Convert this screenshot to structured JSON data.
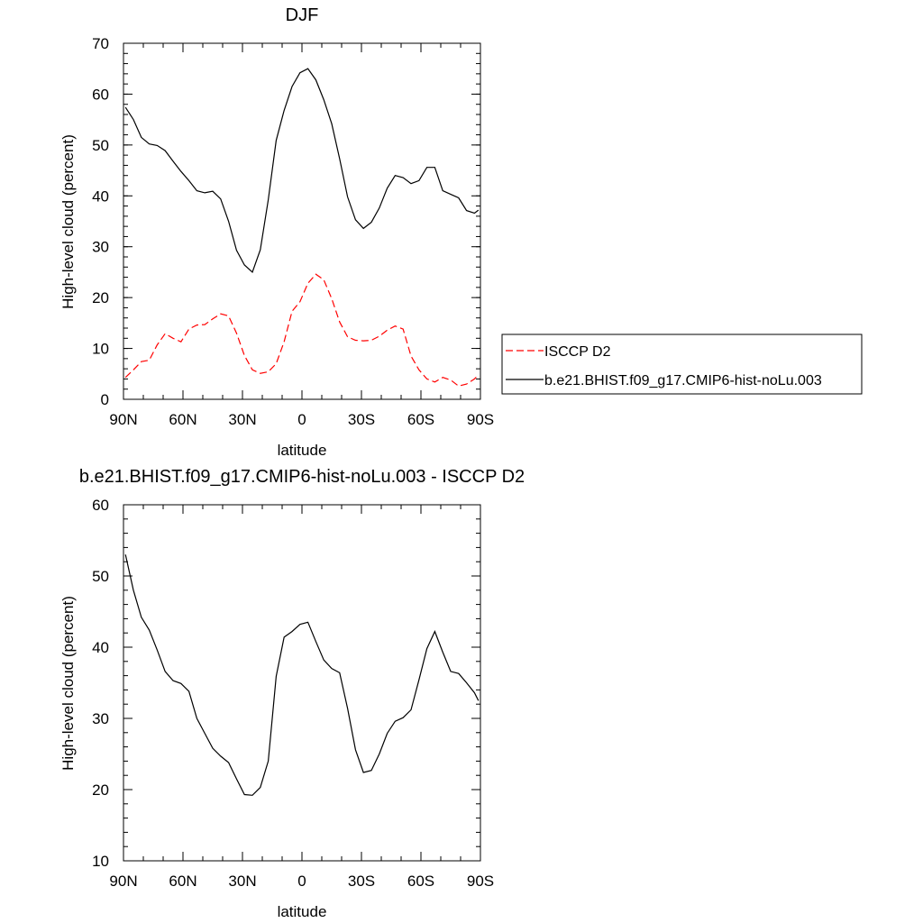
{
  "colors": {
    "model": "#000000",
    "obs": "#ff0000",
    "axis": "#000000"
  },
  "legend": {
    "entries": [
      {
        "label": "ISCCP D2",
        "style": "dashed",
        "color": "#ff0000"
      },
      {
        "label": "b.e21.BHIST.f09_g17.CMIP6-hist-noLu.003",
        "style": "solid",
        "color": "#000000"
      }
    ],
    "placement": "right-middle"
  },
  "chart_data": [
    {
      "type": "line",
      "title": "DJF",
      "xlabel": "latitude",
      "ylabel": "High-level cloud (percent)",
      "xlim": [
        90,
        -90
      ],
      "ylim": [
        0,
        70
      ],
      "xticks": [
        90,
        60,
        30,
        0,
        -30,
        -60,
        -90
      ],
      "xtick_labels": [
        "90N",
        "60N",
        "30N",
        "0",
        "30S",
        "60S",
        "90S"
      ],
      "yticks": [
        0,
        10,
        20,
        30,
        40,
        50,
        60,
        70
      ],
      "ytick_labels": [
        "0",
        "10",
        "20",
        "30",
        "40",
        "50",
        "60",
        "70"
      ],
      "grid": false,
      "series": [
        {
          "name": "ISCCP D2",
          "style": "dashed",
          "x": [
            89,
            85,
            81,
            77,
            73,
            69,
            65,
            61,
            57,
            53,
            49,
            45,
            41,
            37,
            33,
            29,
            25,
            21,
            17,
            13,
            9,
            5,
            1,
            -3,
            -7,
            -11,
            -15,
            -19,
            -23,
            -27,
            -31,
            -35,
            -39,
            -43,
            -47,
            -51,
            -55,
            -59,
            -63,
            -67,
            -71,
            -75,
            -79,
            -83,
            -87,
            -89
          ],
          "values": [
            4.3,
            5.8,
            7.4,
            7.7,
            10.7,
            12.9,
            12.0,
            11.3,
            13.8,
            14.6,
            14.7,
            15.8,
            16.8,
            16.4,
            13.0,
            8.6,
            5.8,
            5.1,
            5.4,
            7.0,
            11.3,
            17.3,
            19.2,
            22.8,
            24.6,
            23.5,
            19.8,
            15.2,
            12.3,
            11.6,
            11.5,
            11.6,
            12.4,
            13.6,
            14.4,
            13.8,
            8.5,
            5.8,
            4.0,
            3.4,
            4.3,
            3.8,
            2.6,
            3.0,
            4.0,
            4.8
          ]
        },
        {
          "name": "b.e21.BHIST.f09_g17.CMIP6-hist-noLu.003",
          "style": "solid",
          "x": [
            89,
            85,
            81,
            77,
            73,
            69,
            65,
            61,
            57,
            53,
            49,
            45,
            41,
            37,
            33,
            29,
            25,
            21,
            17,
            13,
            9,
            5,
            1,
            -3,
            -7,
            -11,
            -15,
            -19,
            -23,
            -27,
            -31,
            -35,
            -39,
            -43,
            -47,
            -51,
            -55,
            -59,
            -63,
            -67,
            -71,
            -75,
            -79,
            -83,
            -87,
            -89
          ],
          "values": [
            57.4,
            55.0,
            51.5,
            50.2,
            49.9,
            48.9,
            46.8,
            44.8,
            43.0,
            41.0,
            40.6,
            40.9,
            39.4,
            35.0,
            29.3,
            26.4,
            25.0,
            29.4,
            39.2,
            50.9,
            56.8,
            61.5,
            64.2,
            65.0,
            62.8,
            58.9,
            54.2,
            47.3,
            39.8,
            35.3,
            33.6,
            34.8,
            37.6,
            41.5,
            44.0,
            43.6,
            42.4,
            43.0,
            45.6,
            45.6,
            41.0,
            40.3,
            39.6,
            37.1,
            36.6,
            37.2
          ]
        }
      ]
    },
    {
      "type": "line",
      "title": "b.e21.BHIST.f09_g17.CMIP6-hist-noLu.003 - ISCCP D2",
      "xlabel": "latitude",
      "ylabel": "High-level cloud (percent)",
      "xlim": [
        90,
        -90
      ],
      "ylim": [
        10,
        60
      ],
      "xticks": [
        90,
        60,
        30,
        0,
        -30,
        -60,
        -90
      ],
      "xtick_labels": [
        "90N",
        "60N",
        "30N",
        "0",
        "30S",
        "60S",
        "90S"
      ],
      "yticks": [
        10,
        20,
        30,
        40,
        50,
        60
      ],
      "ytick_labels": [
        "10",
        "20",
        "30",
        "40",
        "50",
        "60"
      ],
      "grid": false,
      "series": [
        {
          "name": "",
          "style": "solid",
          "x": [
            89,
            85,
            81,
            77,
            73,
            69,
            65,
            61,
            57,
            53,
            49,
            45,
            41,
            37,
            33,
            29,
            25,
            21,
            17,
            13,
            9,
            5,
            1,
            -3,
            -7,
            -11,
            -15,
            -19,
            -23,
            -27,
            -31,
            -35,
            -39,
            -43,
            -47,
            -51,
            -55,
            -59,
            -63,
            -67,
            -71,
            -75,
            -79,
            -83,
            -87,
            -89
          ],
          "values": [
            53.0,
            48.0,
            44.2,
            42.4,
            39.6,
            36.6,
            35.3,
            34.9,
            33.8,
            30.0,
            27.9,
            25.8,
            24.7,
            23.8,
            21.5,
            19.3,
            19.2,
            20.3,
            24.0,
            35.9,
            41.4,
            42.2,
            43.2,
            43.5,
            40.8,
            38.2,
            37.0,
            36.4,
            31.4,
            25.6,
            22.4,
            22.7,
            25.0,
            27.9,
            29.6,
            30.1,
            31.2,
            35.4,
            39.8,
            42.2,
            39.3,
            36.6,
            36.3,
            35.0,
            33.6,
            32.5
          ]
        }
      ]
    }
  ]
}
